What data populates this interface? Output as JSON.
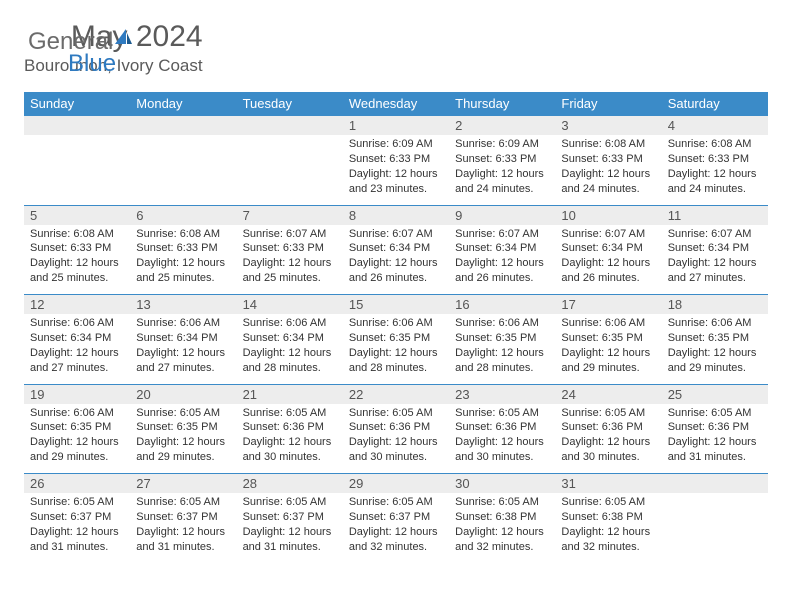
{
  "brand": {
    "general": "General",
    "blue": "Blue"
  },
  "title": "May 2024",
  "location": "Bourounon, Ivory Coast",
  "colors": {
    "header_bg": "#3b8bc8",
    "header_text": "#ffffff",
    "daynum_bg": "#ededed",
    "row_border": "#3b8bc8",
    "brand_gray": "#6b6b6b",
    "brand_blue": "#2f7ac0",
    "body_text": "#333333"
  },
  "weekdays": [
    "Sunday",
    "Monday",
    "Tuesday",
    "Wednesday",
    "Thursday",
    "Friday",
    "Saturday"
  ],
  "weeks": [
    [
      null,
      null,
      null,
      {
        "n": "1",
        "sr": "Sunrise: 6:09 AM",
        "ss": "Sunset: 6:33 PM",
        "d1": "Daylight: 12 hours",
        "d2": "and 23 minutes."
      },
      {
        "n": "2",
        "sr": "Sunrise: 6:09 AM",
        "ss": "Sunset: 6:33 PM",
        "d1": "Daylight: 12 hours",
        "d2": "and 24 minutes."
      },
      {
        "n": "3",
        "sr": "Sunrise: 6:08 AM",
        "ss": "Sunset: 6:33 PM",
        "d1": "Daylight: 12 hours",
        "d2": "and 24 minutes."
      },
      {
        "n": "4",
        "sr": "Sunrise: 6:08 AM",
        "ss": "Sunset: 6:33 PM",
        "d1": "Daylight: 12 hours",
        "d2": "and 24 minutes."
      }
    ],
    [
      {
        "n": "5",
        "sr": "Sunrise: 6:08 AM",
        "ss": "Sunset: 6:33 PM",
        "d1": "Daylight: 12 hours",
        "d2": "and 25 minutes."
      },
      {
        "n": "6",
        "sr": "Sunrise: 6:08 AM",
        "ss": "Sunset: 6:33 PM",
        "d1": "Daylight: 12 hours",
        "d2": "and 25 minutes."
      },
      {
        "n": "7",
        "sr": "Sunrise: 6:07 AM",
        "ss": "Sunset: 6:33 PM",
        "d1": "Daylight: 12 hours",
        "d2": "and 25 minutes."
      },
      {
        "n": "8",
        "sr": "Sunrise: 6:07 AM",
        "ss": "Sunset: 6:34 PM",
        "d1": "Daylight: 12 hours",
        "d2": "and 26 minutes."
      },
      {
        "n": "9",
        "sr": "Sunrise: 6:07 AM",
        "ss": "Sunset: 6:34 PM",
        "d1": "Daylight: 12 hours",
        "d2": "and 26 minutes."
      },
      {
        "n": "10",
        "sr": "Sunrise: 6:07 AM",
        "ss": "Sunset: 6:34 PM",
        "d1": "Daylight: 12 hours",
        "d2": "and 26 minutes."
      },
      {
        "n": "11",
        "sr": "Sunrise: 6:07 AM",
        "ss": "Sunset: 6:34 PM",
        "d1": "Daylight: 12 hours",
        "d2": "and 27 minutes."
      }
    ],
    [
      {
        "n": "12",
        "sr": "Sunrise: 6:06 AM",
        "ss": "Sunset: 6:34 PM",
        "d1": "Daylight: 12 hours",
        "d2": "and 27 minutes."
      },
      {
        "n": "13",
        "sr": "Sunrise: 6:06 AM",
        "ss": "Sunset: 6:34 PM",
        "d1": "Daylight: 12 hours",
        "d2": "and 27 minutes."
      },
      {
        "n": "14",
        "sr": "Sunrise: 6:06 AM",
        "ss": "Sunset: 6:34 PM",
        "d1": "Daylight: 12 hours",
        "d2": "and 28 minutes."
      },
      {
        "n": "15",
        "sr": "Sunrise: 6:06 AM",
        "ss": "Sunset: 6:35 PM",
        "d1": "Daylight: 12 hours",
        "d2": "and 28 minutes."
      },
      {
        "n": "16",
        "sr": "Sunrise: 6:06 AM",
        "ss": "Sunset: 6:35 PM",
        "d1": "Daylight: 12 hours",
        "d2": "and 28 minutes."
      },
      {
        "n": "17",
        "sr": "Sunrise: 6:06 AM",
        "ss": "Sunset: 6:35 PM",
        "d1": "Daylight: 12 hours",
        "d2": "and 29 minutes."
      },
      {
        "n": "18",
        "sr": "Sunrise: 6:06 AM",
        "ss": "Sunset: 6:35 PM",
        "d1": "Daylight: 12 hours",
        "d2": "and 29 minutes."
      }
    ],
    [
      {
        "n": "19",
        "sr": "Sunrise: 6:06 AM",
        "ss": "Sunset: 6:35 PM",
        "d1": "Daylight: 12 hours",
        "d2": "and 29 minutes."
      },
      {
        "n": "20",
        "sr": "Sunrise: 6:05 AM",
        "ss": "Sunset: 6:35 PM",
        "d1": "Daylight: 12 hours",
        "d2": "and 29 minutes."
      },
      {
        "n": "21",
        "sr": "Sunrise: 6:05 AM",
        "ss": "Sunset: 6:36 PM",
        "d1": "Daylight: 12 hours",
        "d2": "and 30 minutes."
      },
      {
        "n": "22",
        "sr": "Sunrise: 6:05 AM",
        "ss": "Sunset: 6:36 PM",
        "d1": "Daylight: 12 hours",
        "d2": "and 30 minutes."
      },
      {
        "n": "23",
        "sr": "Sunrise: 6:05 AM",
        "ss": "Sunset: 6:36 PM",
        "d1": "Daylight: 12 hours",
        "d2": "and 30 minutes."
      },
      {
        "n": "24",
        "sr": "Sunrise: 6:05 AM",
        "ss": "Sunset: 6:36 PM",
        "d1": "Daylight: 12 hours",
        "d2": "and 30 minutes."
      },
      {
        "n": "25",
        "sr": "Sunrise: 6:05 AM",
        "ss": "Sunset: 6:36 PM",
        "d1": "Daylight: 12 hours",
        "d2": "and 31 minutes."
      }
    ],
    [
      {
        "n": "26",
        "sr": "Sunrise: 6:05 AM",
        "ss": "Sunset: 6:37 PM",
        "d1": "Daylight: 12 hours",
        "d2": "and 31 minutes."
      },
      {
        "n": "27",
        "sr": "Sunrise: 6:05 AM",
        "ss": "Sunset: 6:37 PM",
        "d1": "Daylight: 12 hours",
        "d2": "and 31 minutes."
      },
      {
        "n": "28",
        "sr": "Sunrise: 6:05 AM",
        "ss": "Sunset: 6:37 PM",
        "d1": "Daylight: 12 hours",
        "d2": "and 31 minutes."
      },
      {
        "n": "29",
        "sr": "Sunrise: 6:05 AM",
        "ss": "Sunset: 6:37 PM",
        "d1": "Daylight: 12 hours",
        "d2": "and 32 minutes."
      },
      {
        "n": "30",
        "sr": "Sunrise: 6:05 AM",
        "ss": "Sunset: 6:38 PM",
        "d1": "Daylight: 12 hours",
        "d2": "and 32 minutes."
      },
      {
        "n": "31",
        "sr": "Sunrise: 6:05 AM",
        "ss": "Sunset: 6:38 PM",
        "d1": "Daylight: 12 hours",
        "d2": "and 32 minutes."
      },
      null
    ]
  ]
}
